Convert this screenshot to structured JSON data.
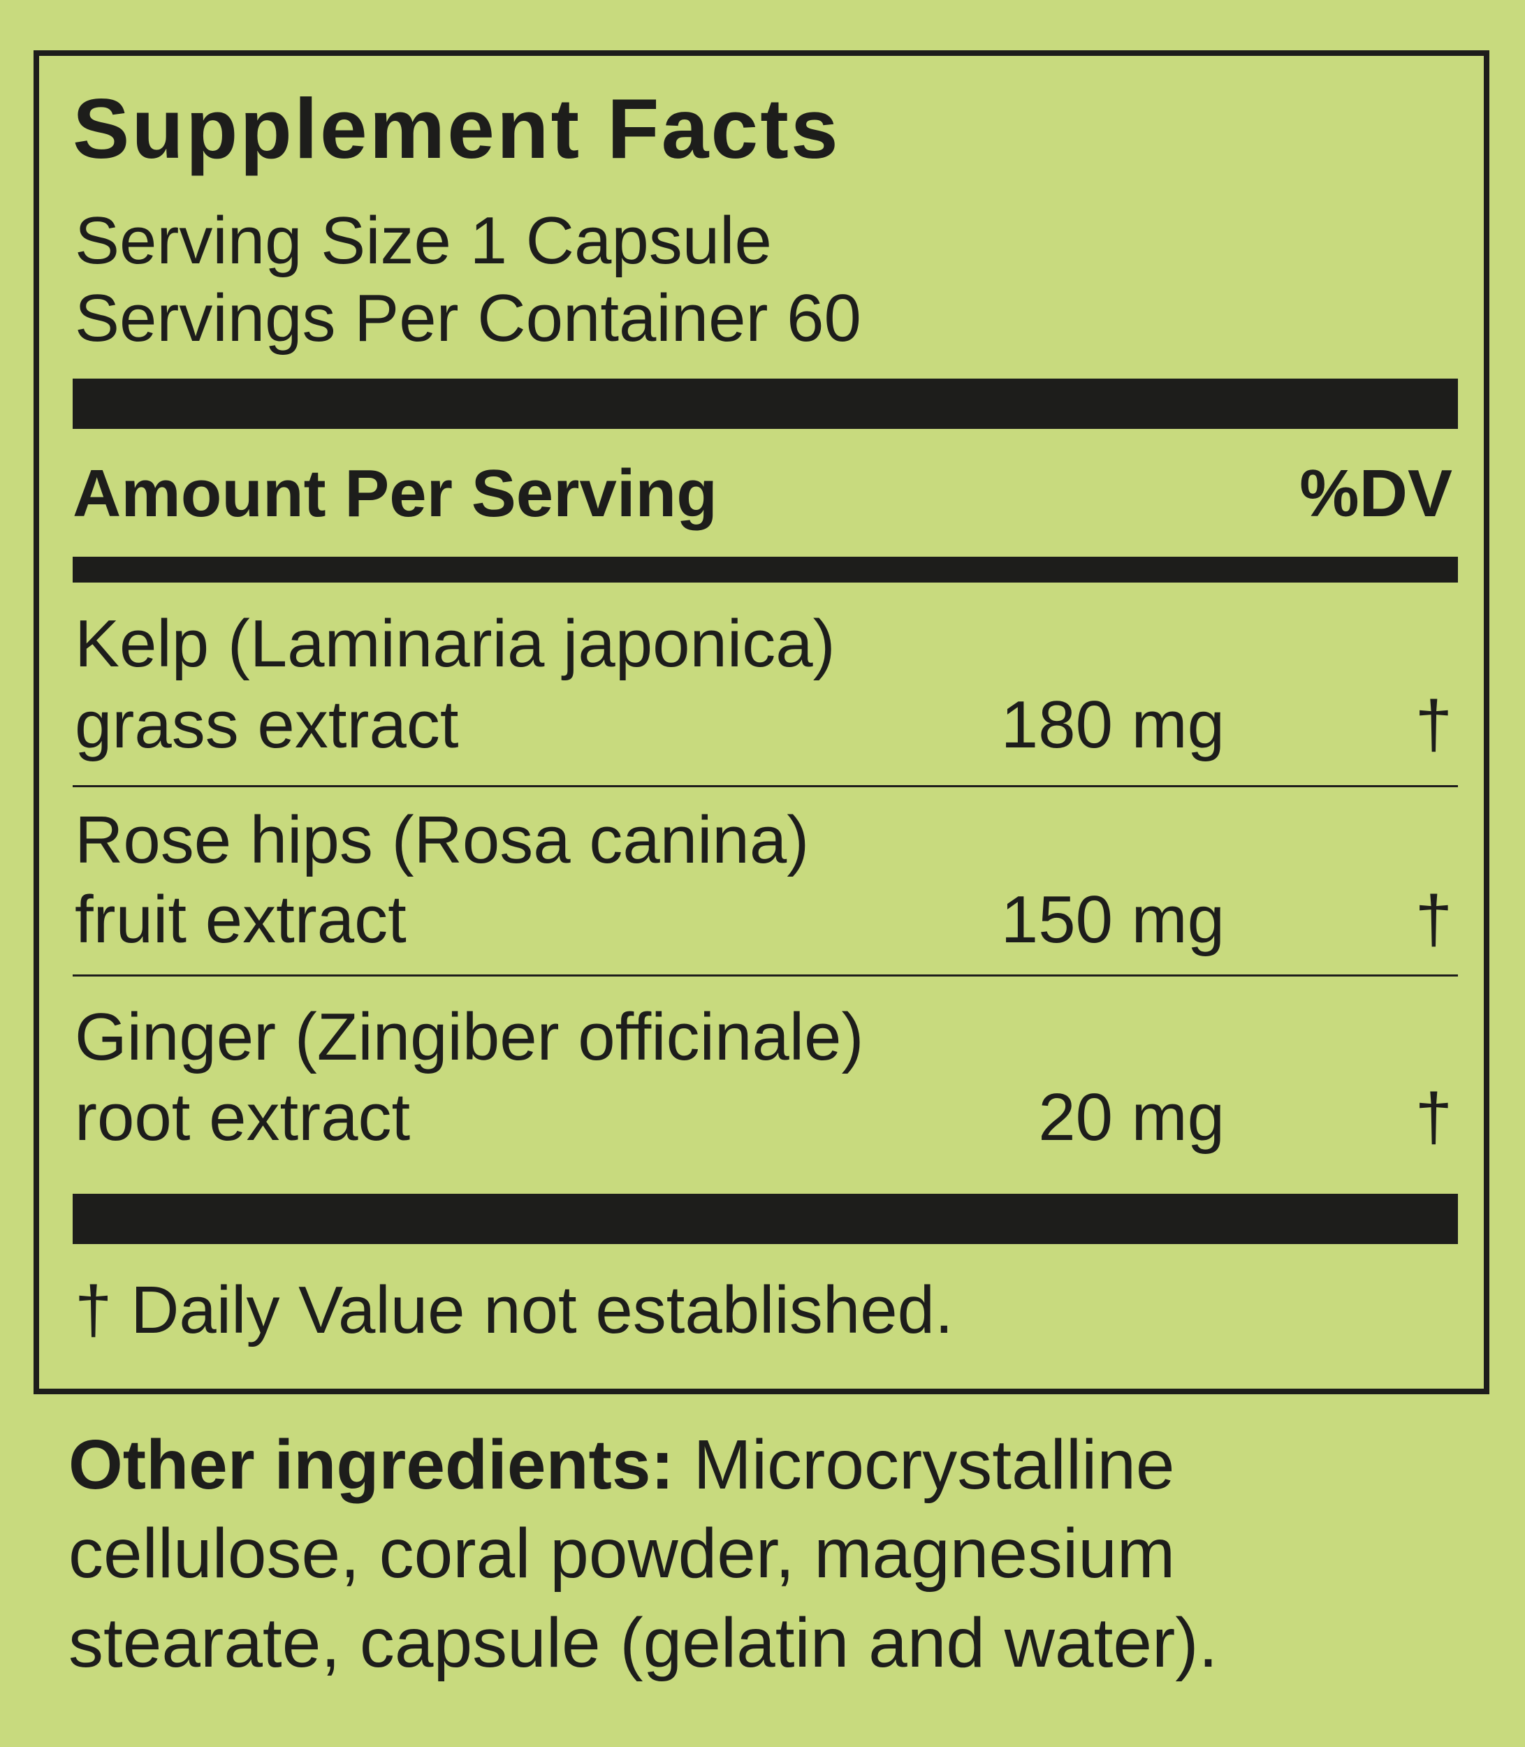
{
  "label": {
    "title": "Supplement Facts",
    "serving_size": "Serving Size 1 Capsule",
    "servings_per_container": "Servings Per Container 60",
    "header": {
      "amount": "Amount Per Serving",
      "dv": "%DV"
    },
    "ingredients": [
      {
        "line1": "Kelp (Laminaria japonica)",
        "line2": "grass extract",
        "amount": "180 mg",
        "dv": "†"
      },
      {
        "line1": "Rose hips (Rosa canina)",
        "line2": "fruit extract",
        "amount": "150 mg",
        "dv": "†"
      },
      {
        "line1": "Ginger (Zingiber officinale)",
        "line2": "root extract",
        "amount": "20 mg",
        "dv": "†"
      }
    ],
    "footnote": "† Daily Value not established."
  },
  "other_ingredients": {
    "label": "Other ingredients:",
    "line1": " Microcrystalline",
    "line2": "cellulose, coral powder, magnesium",
    "line3": "stearate, capsule (gelatin and water)."
  },
  "colors": {
    "background": "#c8da7e",
    "ink": "#1d1d1b"
  }
}
